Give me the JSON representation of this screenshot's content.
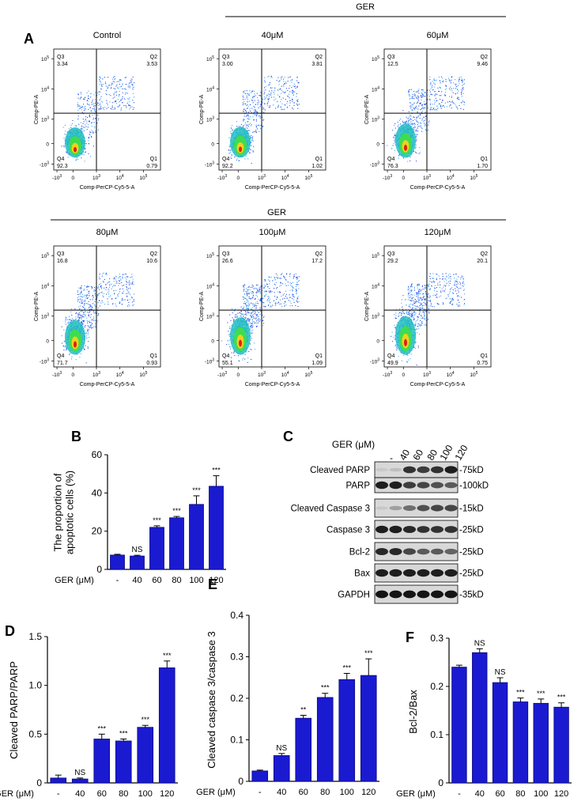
{
  "panel_letters": {
    "a": "A",
    "b": "B",
    "c": "C",
    "d": "D",
    "e": "E",
    "f": "F"
  },
  "flow": {
    "group_label": "GER",
    "axis_y": "Comp-PE-A",
    "axis_x": "Comp-PerCP-Cy5-5-A",
    "x_ticks": [
      "-10",
      "0",
      "10",
      "10",
      "10"
    ],
    "x_tick_exps": [
      "3",
      "",
      "3",
      "4",
      "5"
    ],
    "y_ticks": [
      "10",
      "10",
      "10",
      "0",
      "-10"
    ],
    "y_tick_exps": [
      "5",
      "4",
      "3",
      "",
      "3"
    ],
    "quad_names": [
      "Q3",
      "Q2",
      "Q4",
      "Q1"
    ],
    "plots": [
      {
        "title": "Control",
        "q3": "3.34",
        "q2": "3.53",
        "q4": "92.3",
        "q1": "0.79",
        "scatter": 0.15
      },
      {
        "title": "40μM",
        "q3": "3.00",
        "q2": "3.81",
        "q4": "92.2",
        "q1": "1.02",
        "scatter": 0.2
      },
      {
        "title": "60μM",
        "q3": "12.5",
        "q2": "9.46",
        "q4": "76.3",
        "q1": "1.70",
        "scatter": 0.45
      },
      {
        "title": "80μM",
        "q3": "16.8",
        "q2": "10.6",
        "q4": "71.7",
        "q1": "0.93",
        "scatter": 0.5
      },
      {
        "title": "100μM",
        "q3": "26.6",
        "q2": "17.2",
        "q4": "55.1",
        "q1": "1.09",
        "scatter": 0.7
      },
      {
        "title": "120μM",
        "q3": "29.2",
        "q2": "20.1",
        "q4": "49.9",
        "q1": "0.75",
        "scatter": 0.8
      }
    ]
  },
  "western": {
    "header": "GER (μM)",
    "lanes": [
      "-",
      "40",
      "60",
      "80",
      "100",
      "120"
    ],
    "bands": [
      {
        "name": "Cleaved PARP",
        "kd": "-75kD",
        "levels": [
          0.05,
          0.1,
          0.8,
          0.75,
          0.8,
          0.9
        ]
      },
      {
        "name": "PARP",
        "kd": "-100kD",
        "levels": [
          0.9,
          0.9,
          0.75,
          0.7,
          0.65,
          0.6
        ]
      },
      {
        "name": "Cleaved Caspase 3",
        "kd": "-15kD",
        "levels": [
          0.05,
          0.25,
          0.5,
          0.65,
          0.7,
          0.7
        ]
      },
      {
        "name": "Caspase 3",
        "kd": "-25kD",
        "levels": [
          0.9,
          0.9,
          0.85,
          0.8,
          0.8,
          0.8
        ]
      },
      {
        "name": "Bcl-2",
        "kd": "-25kD",
        "levels": [
          0.85,
          0.85,
          0.7,
          0.6,
          0.6,
          0.55
        ]
      },
      {
        "name": "Bax",
        "kd": "-25kD",
        "levels": [
          0.9,
          0.9,
          0.9,
          0.9,
          0.9,
          0.9
        ]
      },
      {
        "name": "GAPDH",
        "kd": "-35kD",
        "levels": [
          0.95,
          0.95,
          0.95,
          0.95,
          0.95,
          0.95
        ]
      }
    ]
  },
  "colors": {
    "bar": "#1a1ad0",
    "bar_edge": "#0a0a80"
  },
  "chart_data": [
    {
      "id": "B",
      "type": "bar",
      "ylabel": "The proportion of\napoptotic cells (%)",
      "xlabel": "GER (μM)",
      "categories": [
        "-",
        "40",
        "60",
        "80",
        "100",
        "120"
      ],
      "values": [
        7.5,
        7.0,
        22.0,
        27.0,
        34.0,
        43.5
      ],
      "errors": [
        0.4,
        0.4,
        0.8,
        0.7,
        4.5,
        5.5
      ],
      "marks": [
        "",
        "NS",
        "***",
        "***",
        "***",
        "***"
      ],
      "ylim": [
        0,
        60
      ],
      "yticks": [
        0,
        20,
        40,
        60
      ]
    },
    {
      "id": "D",
      "type": "bar",
      "ylabel": "Cleaved PARP/PARP",
      "xlabel": "GER (μM)",
      "categories": [
        "-",
        "40",
        "60",
        "80",
        "100",
        "120"
      ],
      "values": [
        0.05,
        0.04,
        0.45,
        0.43,
        0.57,
        1.18
      ],
      "errors": [
        0.03,
        0.01,
        0.05,
        0.02,
        0.02,
        0.07
      ],
      "marks": [
        "",
        "NS",
        "***",
        "***",
        "***",
        "***"
      ],
      "ylim": [
        0,
        1.5
      ],
      "yticks": [
        0,
        0.5,
        1.0,
        1.5
      ]
    },
    {
      "id": "E",
      "type": "bar",
      "ylabel": "Cleaved caspase 3/caspase 3",
      "xlabel": "GER (μM)",
      "categories": [
        "-",
        "40",
        "60",
        "80",
        "100",
        "120"
      ],
      "values": [
        0.025,
        0.062,
        0.152,
        0.202,
        0.245,
        0.255
      ],
      "errors": [
        0.002,
        0.005,
        0.007,
        0.01,
        0.015,
        0.04
      ],
      "marks": [
        "",
        "NS",
        "**",
        "***",
        "***",
        "***"
      ],
      "ylim": [
        0,
        0.4
      ],
      "yticks": [
        0,
        0.1,
        0.2,
        0.3,
        0.4
      ]
    },
    {
      "id": "F",
      "type": "bar",
      "ylabel": "Bcl-2/Bax",
      "xlabel": "GER (μM)",
      "categories": [
        "-",
        "40",
        "60",
        "80",
        "100",
        "120"
      ],
      "values": [
        0.24,
        0.27,
        0.208,
        0.168,
        0.165,
        0.157
      ],
      "errors": [
        0.004,
        0.008,
        0.01,
        0.008,
        0.009,
        0.009
      ],
      "marks": [
        "",
        "NS",
        "NS",
        "***",
        "***",
        "***"
      ],
      "ylim": [
        0,
        0.3
      ],
      "yticks": [
        0,
        0.1,
        0.2,
        0.3
      ]
    }
  ]
}
